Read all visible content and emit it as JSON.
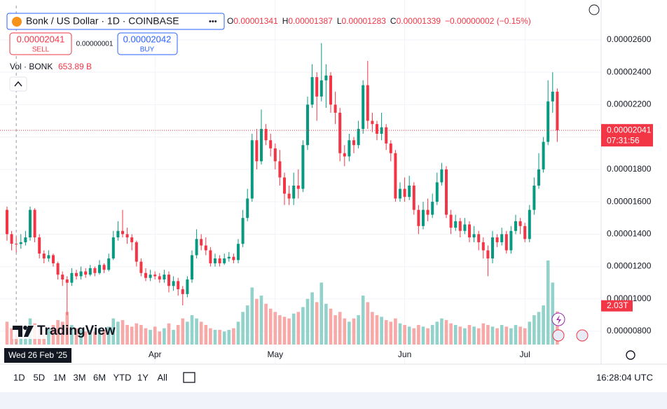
{
  "legend": {
    "symbol": "Bonk / US Dollar · 1D · COINBASE",
    "ohlc": [
      {
        "key": "O",
        "value": "0.00001341"
      },
      {
        "key": "H",
        "value": "0.00001387"
      },
      {
        "key": "L",
        "value": "0.00001283"
      },
      {
        "key": "C",
        "value": "0.00001339"
      }
    ],
    "change": "−0.00000002 (−0.15%)",
    "sell_price": "0.00002041",
    "sell": "SELL",
    "spread": "0.00000001",
    "buy_price": "0.00002042",
    "buy": "BUY"
  },
  "chart_data": {
    "type": "candlestick",
    "up_color": "#089981",
    "down_color": "#f23645",
    "grid": true,
    "categories": [
      null,
      null,
      null,
      null,
      null,
      null,
      null,
      null,
      null,
      null,
      null,
      null,
      null,
      null,
      null,
      null,
      null,
      null,
      null,
      null,
      null,
      null,
      null,
      null,
      null,
      null,
      null,
      null,
      null,
      null,
      null,
      null,
      "Apr",
      null,
      null,
      null,
      null,
      null,
      null,
      null,
      null,
      null,
      null,
      null,
      null,
      null,
      null,
      null,
      null,
      null,
      null,
      null,
      null,
      null,
      null,
      null,
      null,
      null,
      "May",
      null,
      null,
      null,
      null,
      null,
      null,
      null,
      null,
      null,
      null,
      null,
      null,
      null,
      null,
      null,
      null,
      null,
      null,
      null,
      null,
      null,
      null,
      null,
      null,
      null,
      null,
      null,
      "Jun",
      null,
      null,
      null,
      null,
      null,
      null,
      null,
      null,
      null,
      null,
      null,
      null,
      null,
      null,
      null,
      null,
      null,
      null,
      null,
      null,
      null,
      null,
      null,
      null,
      null,
      "Jul",
      null,
      null,
      null,
      null,
      null,
      null,
      null
    ],
    "open": [
      1.55e-05,
      1.4e-05,
      1.341e-05,
      1.339e-05,
      1.35e-05,
      1.38e-05,
      1.55e-05,
      1.38e-05,
      1.28e-05,
      1.25e-05,
      1.27e-05,
      1.22e-05,
      1.15e-05,
      1.12e-05,
      1.1e-05,
      1.16e-05,
      1.14e-05,
      1.17e-05,
      1.15e-05,
      1.19e-05,
      1.16e-05,
      1.21e-05,
      1.18e-05,
      1.25e-05,
      1.38e-05,
      1.42e-05,
      1.4e-05,
      1.38e-05,
      1.35e-05,
      1.23e-05,
      1.16e-05,
      1.13e-05,
      1.15e-05,
      1.14e-05,
      1.12e-05,
      1.15e-05,
      1.08e-05,
      1.11e-05,
      1.06e-05,
      1.03e-05,
      1.12e-05,
      1.27e-05,
      1.37e-05,
      1.33e-05,
      1.3e-05,
      1.22e-05,
      1.25e-05,
      1.22e-05,
      1.25e-05,
      1.26e-05,
      1.24e-05,
      1.34e-05,
      1.5e-05,
      1.62e-05,
      1.98e-05,
      1.85e-05,
      2.05e-05,
      1.98e-05,
      1.93e-05,
      1.85e-05,
      1.75e-05,
      1.65e-05,
      1.62e-05,
      1.7e-05,
      1.68e-05,
      1.95e-05,
      2.2e-05,
      2.37e-05,
      2.25e-05,
      2.35e-05,
      2.38e-05,
      2.2e-05,
      2.15e-05,
      1.9e-05,
      1.88e-05,
      1.98e-05,
      1.95e-05,
      2.05e-05,
      2.32e-05,
      2.1e-05,
      2.08e-05,
      2.02e-05,
      2.06e-05,
      1.96e-05,
      1.9e-05,
      1.62e-05,
      1.68e-05,
      1.63e-05,
      1.7e-05,
      1.55e-05,
      1.45e-05,
      1.55e-05,
      1.52e-05,
      1.6e-05,
      1.72e-05,
      1.8e-05,
      1.52e-05,
      1.44e-05,
      1.48e-05,
      1.42e-05,
      1.46e-05,
      1.38e-05,
      1.4e-05,
      1.35e-05,
      1.3e-05,
      1.25e-05,
      1.38e-05,
      1.35e-05,
      1.4e-05,
      1.3e-05,
      1.42e-05,
      1.48e-05,
      1.45e-05,
      1.37e-05,
      1.55e-05,
      1.7e-05,
      1.8e-05,
      1.97e-05,
      2.22e-05,
      2.28e-05
    ],
    "high": [
      1.57e-05,
      1.42e-05,
      1.387e-05,
      1.4e-05,
      1.42e-05,
      1.57e-05,
      1.56e-05,
      1.4e-05,
      1.3e-05,
      1.3e-05,
      1.28e-05,
      1.23e-05,
      1.17e-05,
      1.14e-05,
      1.19e-05,
      1.18e-05,
      1.2e-05,
      1.19e-05,
      1.21e-05,
      1.2e-05,
      1.24e-05,
      1.22e-05,
      1.28e-05,
      1.42e-05,
      1.48e-05,
      1.55e-05,
      1.44e-05,
      1.4e-05,
      1.36e-05,
      1.25e-05,
      1.19e-05,
      1.18e-05,
      1.17e-05,
      1.16e-05,
      1.18e-05,
      1.17e-05,
      1.14e-05,
      1.13e-05,
      1.08e-05,
      1.14e-05,
      1.3e-05,
      1.43e-05,
      1.4e-05,
      1.38e-05,
      1.32e-05,
      1.28e-05,
      1.27e-05,
      1.28e-05,
      1.29e-05,
      1.28e-05,
      1.37e-05,
      1.55e-05,
      1.68e-05,
      2.02e-05,
      2.05e-05,
      2.17e-05,
      2.08e-05,
      2.02e-05,
      1.96e-05,
      1.92e-05,
      1.78e-05,
      1.7e-05,
      1.78e-05,
      1.8e-05,
      1.98e-05,
      2.25e-05,
      2.45e-05,
      2.4e-05,
      2.58e-05,
      2.45e-05,
      2.4e-05,
      2.28e-05,
      2.18e-05,
      1.95e-05,
      2.02e-05,
      2e-05,
      2.1e-05,
      2.35e-05,
      2.47e-05,
      2.15e-05,
      2.1e-05,
      2.15e-05,
      2.08e-05,
      1.98e-05,
      1.92e-05,
      1.72e-05,
      1.75e-05,
      1.76e-05,
      1.72e-05,
      1.58e-05,
      1.6e-05,
      1.62e-05,
      1.65e-05,
      1.78e-05,
      1.84e-05,
      1.82e-05,
      1.55e-05,
      1.52e-05,
      1.5e-05,
      1.5e-05,
      1.48e-05,
      1.45e-05,
      1.42e-05,
      1.38e-05,
      1.33e-05,
      1.42e-05,
      1.4e-05,
      1.44e-05,
      1.42e-05,
      1.45e-05,
      1.52e-05,
      1.5e-05,
      1.47e-05,
      1.58e-05,
      1.75e-05,
      1.9e-05,
      2e-05,
      2.35e-05,
      2.4e-05,
      2.3e-05
    ],
    "low": [
      1.36e-05,
      1.3e-05,
      1.283e-05,
      1.31e-05,
      1.33e-05,
      1.36e-05,
      1.35e-05,
      1.25e-05,
      1.22e-05,
      1.23e-05,
      1.2e-05,
      1.12e-05,
      1.08e-05,
      9e-06,
      1.08e-05,
      1.12e-05,
      1.12e-05,
      1.13e-05,
      1.14e-05,
      1.14e-05,
      1.15e-05,
      1.16e-05,
      1.17e-05,
      1.24e-05,
      1.36e-05,
      1.38e-05,
      1.34e-05,
      1.3e-05,
      1.2e-05,
      1.14e-05,
      1.11e-05,
      1.11e-05,
      1.12e-05,
      1.1e-05,
      1.1e-05,
      1.04e-05,
      1.05e-05,
      1.02e-05,
      9.6e-06,
      1.01e-05,
      1.1e-05,
      1.25e-05,
      1.3e-05,
      1.27e-05,
      1.2e-05,
      1.2e-05,
      1.2e-05,
      1.21e-05,
      1.23e-05,
      1.22e-05,
      1.22e-05,
      1.32e-05,
      1.48e-05,
      1.6e-05,
      1.8e-05,
      1.83e-05,
      1.95e-05,
      1.88e-05,
      1.8e-05,
      1.7e-05,
      1.58e-05,
      1.58e-05,
      1.58e-05,
      1.62e-05,
      1.66e-05,
      1.92e-05,
      2.18e-05,
      2.1e-05,
      2.22e-05,
      2.18e-05,
      2.15e-05,
      2.08e-05,
      1.85e-05,
      1.82e-05,
      1.85e-05,
      1.9e-05,
      1.93e-05,
      2.02e-05,
      2.05e-05,
      2.03e-05,
      1.98e-05,
      1.98e-05,
      1.92e-05,
      1.85e-05,
      1.6e-05,
      1.6e-05,
      1.6e-05,
      1.61e-05,
      1.52e-05,
      1.4e-05,
      1.43e-05,
      1.48e-05,
      1.5e-05,
      1.58e-05,
      1.7e-05,
      1.5e-05,
      1.4e-05,
      1.42e-05,
      1.38e-05,
      1.4e-05,
      1.35e-05,
      1.35e-05,
      1.3e-05,
      1.25e-05,
      1.14e-05,
      1.22e-05,
      1.32e-05,
      1.33e-05,
      1.28e-05,
      1.28e-05,
      1.4e-05,
      1.4e-05,
      1.35e-05,
      1.35e-05,
      1.52e-05,
      1.68e-05,
      1.78e-05,
      1.95e-05,
      2.15e-05,
      1.97e-05
    ],
    "close": [
      1.4e-05,
      1.341e-05,
      1.339e-05,
      1.35e-05,
      1.38e-05,
      1.55e-05,
      1.38e-05,
      1.28e-05,
      1.25e-05,
      1.27e-05,
      1.22e-05,
      1.15e-05,
      1.12e-05,
      1.1e-05,
      1.16e-05,
      1.14e-05,
      1.17e-05,
      1.15e-05,
      1.19e-05,
      1.16e-05,
      1.21e-05,
      1.18e-05,
      1.25e-05,
      1.38e-05,
      1.42e-05,
      1.4e-05,
      1.38e-05,
      1.35e-05,
      1.23e-05,
      1.16e-05,
      1.13e-05,
      1.15e-05,
      1.14e-05,
      1.12e-05,
      1.15e-05,
      1.08e-05,
      1.11e-05,
      1.06e-05,
      1.03e-05,
      1.12e-05,
      1.27e-05,
      1.37e-05,
      1.33e-05,
      1.3e-05,
      1.22e-05,
      1.25e-05,
      1.22e-05,
      1.25e-05,
      1.26e-05,
      1.24e-05,
      1.34e-05,
      1.5e-05,
      1.62e-05,
      1.98e-05,
      1.85e-05,
      2.05e-05,
      1.98e-05,
      1.93e-05,
      1.85e-05,
      1.75e-05,
      1.65e-05,
      1.62e-05,
      1.7e-05,
      1.68e-05,
      1.95e-05,
      2.2e-05,
      2.37e-05,
      2.25e-05,
      2.35e-05,
      2.38e-05,
      2.2e-05,
      2.15e-05,
      1.9e-05,
      1.88e-05,
      1.98e-05,
      1.95e-05,
      2.05e-05,
      2.32e-05,
      2.1e-05,
      2.08e-05,
      2.02e-05,
      2.06e-05,
      1.96e-05,
      1.9e-05,
      1.62e-05,
      1.68e-05,
      1.63e-05,
      1.7e-05,
      1.55e-05,
      1.45e-05,
      1.55e-05,
      1.52e-05,
      1.6e-05,
      1.72e-05,
      1.8e-05,
      1.52e-05,
      1.44e-05,
      1.48e-05,
      1.42e-05,
      1.46e-05,
      1.38e-05,
      1.4e-05,
      1.35e-05,
      1.3e-05,
      1.25e-05,
      1.38e-05,
      1.35e-05,
      1.4e-05,
      1.3e-05,
      1.42e-05,
      1.48e-05,
      1.45e-05,
      1.37e-05,
      1.55e-05,
      1.7e-05,
      1.8e-05,
      1.97e-05,
      2.22e-05,
      2.28e-05,
      2.041e-05
    ],
    "volume": {
      "label": "Vol · BONK",
      "up_color": "#92d2cb",
      "down_color": "#f7a9a7",
      "values": [
        1400000000000.0,
        1000000000000.0,
        653890000000.0,
        900000000000.0,
        1200000000000.0,
        1600000000000.0,
        1300000000000.0,
        1100000000000.0,
        900000000000.0,
        1000000000000.0,
        1200000000000.0,
        1500000000000.0,
        1400000000000.0,
        2000000000000.0,
        1200000000000.0,
        1000000000000.0,
        900000000000.0,
        800000000000.0,
        900000000000.0,
        800000000000.0,
        1000000000000.0,
        900000000000.0,
        1100000000000.0,
        1600000000000.0,
        1400000000000.0,
        1500000000000.0,
        1200000000000.0,
        1100000000000.0,
        1300000000000.0,
        1200000000000.0,
        1000000000000.0,
        900000000000.0,
        1100000000000.0,
        800000000000.0,
        1000000000000.0,
        1300000000000.0,
        900000000000.0,
        1200000000000.0,
        1600000000000.0,
        1400000000000.0,
        1800000000000.0,
        1600000000000.0,
        1400000000000.0,
        1200000000000.0,
        1000000000000.0,
        900000000000.0,
        900000000000.0,
        800000000000.0,
        900000000000.0,
        1000000000000.0,
        1400000000000.0,
        2000000000000.0,
        2400000000000.0,
        3500000000000.0,
        2800000000000.0,
        3000000000000.0,
        2500000000000.0,
        2200000000000.0,
        2000000000000.0,
        1800000000000.0,
        1700000000000.0,
        1600000000000.0,
        1900000000000.0,
        2000000000000.0,
        2300000000000.0,
        2800000000000.0,
        3200000000000.0,
        2600000000000.0,
        3800000000000.0,
        2500000000000.0,
        2200000000000.0,
        1800000000000.0,
        2000000000000.0,
        1600000000000.0,
        1400000000000.0,
        1600000000000.0,
        1800000000000.0,
        3000000000000.0,
        2600000000000.0,
        2000000000000.0,
        1800000000000.0,
        1700000000000.0,
        1500000000000.0,
        1400000000000.0,
        1600000000000.0,
        1300000000000.0,
        1200000000000.0,
        1100000000000.0,
        1000000000000.0,
        1200000000000.0,
        1100000000000.0,
        1000000000000.0,
        1200000000000.0,
        1400000000000.0,
        1600000000000.0,
        1500000000000.0,
        1300000000000.0,
        1200000000000.0,
        1100000000000.0,
        1000000000000.0,
        1200000000000.0,
        1100000000000.0,
        1000000000000.0,
        1300000000000.0,
        1200000000000.0,
        1100000000000.0,
        1000000000000.0,
        1200000000000.0,
        1100000000000.0,
        1000000000000.0,
        1200000000000.0,
        1100000000000.0,
        1000000000000.0,
        1400000000000.0,
        1800000000000.0,
        2000000000000.0,
        2400000000000.0,
        5150000000000.0,
        3800000000000.0,
        2030000000000.0
      ],
      "value_labels": {
        "2": "653.89 B",
        "119": "2.03T"
      }
    },
    "ylim": [
      7.18e-06,
      2.803e-05
    ],
    "yticks": [
      {
        "value": 8e-06,
        "label": "0.00000800"
      },
      {
        "value": 1e-05,
        "label": "0.00001000"
      },
      {
        "value": 1.2e-05,
        "label": "0.00001200"
      },
      {
        "value": 1.4e-05,
        "label": "0.00001400"
      },
      {
        "value": 1.6e-05,
        "label": "0.00001600"
      },
      {
        "value": 1.8e-05,
        "label": "0.00001800"
      },
      {
        "value": 2e-05,
        "label": "0.00002000"
      },
      {
        "value": 2.2e-05,
        "label": "0.00002200"
      },
      {
        "value": 2.4e-05,
        "label": "0.00002400"
      },
      {
        "value": 2.6e-05,
        "label": "0.00002600"
      }
    ],
    "last_price_label": "0.00002041",
    "countdown": "07:31:56",
    "crosshair_label": "Wed 26 Feb '25",
    "watermark": "TradingView"
  },
  "toolbar": {
    "ranges": [
      "1D",
      "5D",
      "1M",
      "3M",
      "6M",
      "YTD",
      "1Y",
      "All"
    ],
    "time": "16:28:04 UTC"
  }
}
